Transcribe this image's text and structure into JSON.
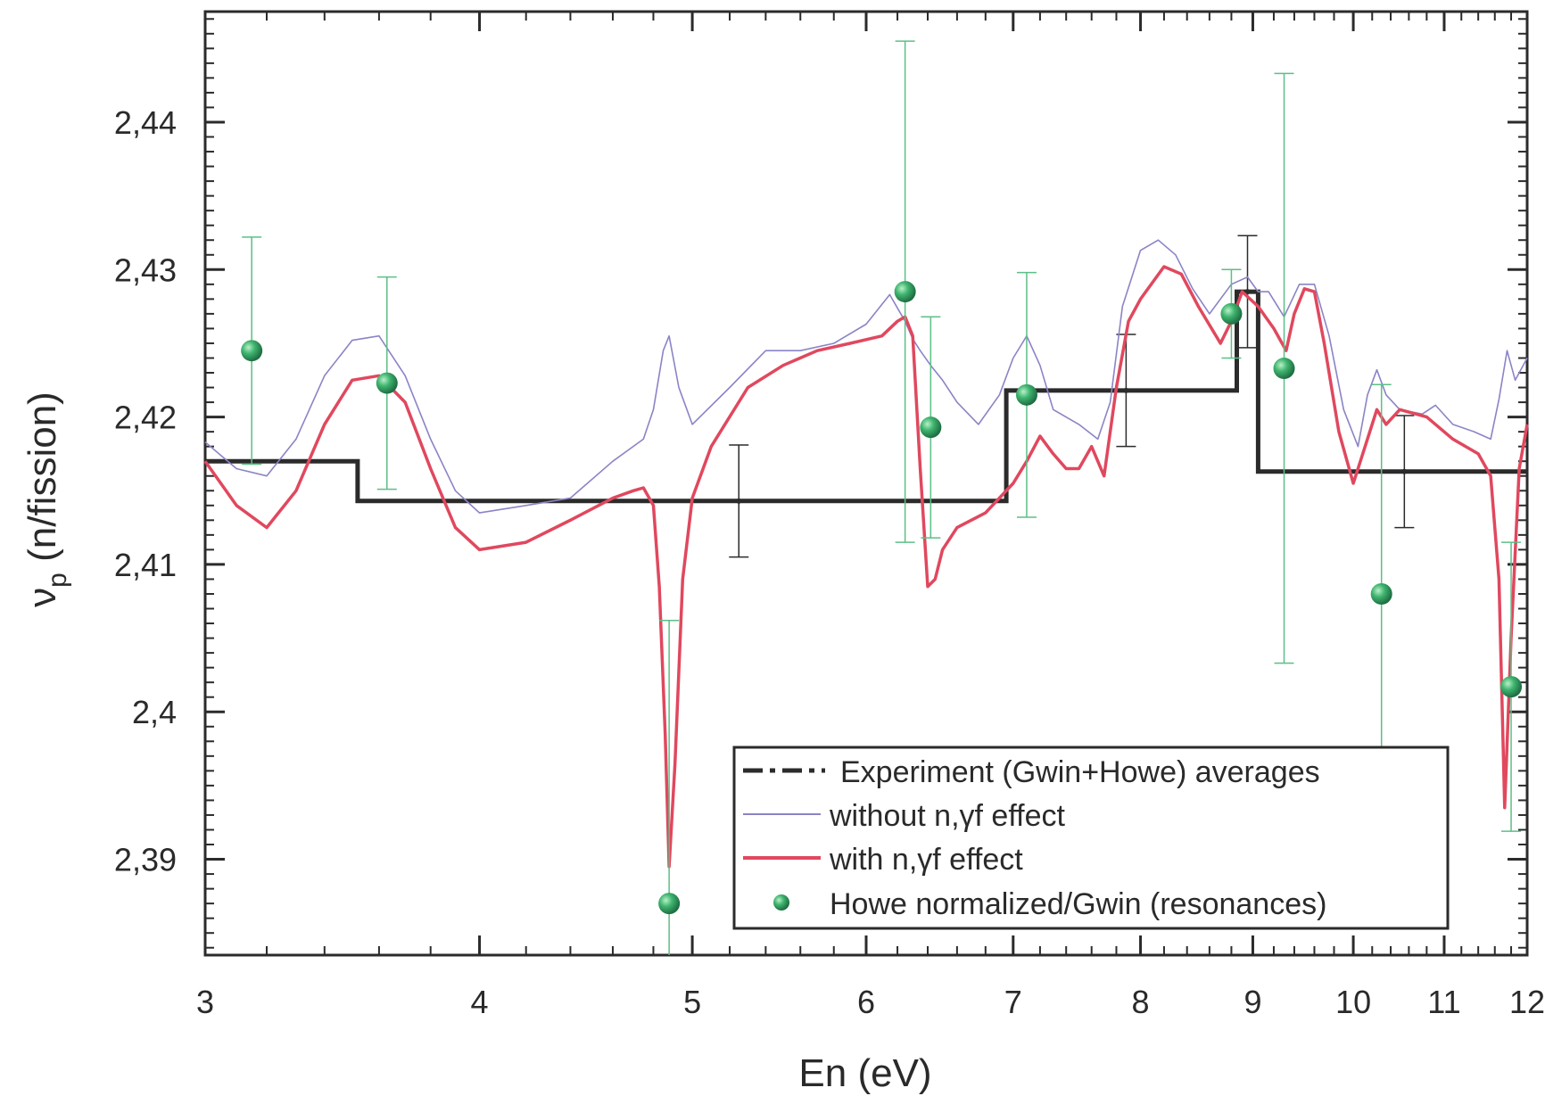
{
  "chart_data": {
    "type": "line",
    "xlabel": "En (eV)",
    "ylabel": "ν",
    "ylabel_sub": "p",
    "ylabel_unit": "(n/fission)",
    "x_scale": "log",
    "xlim": [
      3,
      12
    ],
    "ylim": [
      2.3835,
      2.4475
    ],
    "x_ticks": [
      {
        "value": 3,
        "label": "3"
      },
      {
        "value": 4,
        "label": "4"
      },
      {
        "value": 5,
        "label": "5"
      },
      {
        "value": 6,
        "label": "6"
      },
      {
        "value": 7,
        "label": "7"
      },
      {
        "value": 8,
        "label": "8"
      },
      {
        "value": 9,
        "label": "9"
      },
      {
        "value": 10,
        "label": "10"
      },
      {
        "value": 11,
        "label": "11"
      },
      {
        "value": 12,
        "label": "12"
      }
    ],
    "y_ticks": [
      {
        "value": 2.39,
        "label": "2,39"
      },
      {
        "value": 2.4,
        "label": "2,4"
      },
      {
        "value": 2.41,
        "label": "2,41"
      },
      {
        "value": 2.42,
        "label": "2,42"
      },
      {
        "value": 2.43,
        "label": "2,43"
      },
      {
        "value": 2.44,
        "label": "2,44"
      }
    ],
    "grid": false,
    "legend_position": "bottom-right",
    "series": [
      {
        "name": "Experiment (Gwin+Howe) averages",
        "kind": "step",
        "color": "#2b2b2b",
        "steps": [
          {
            "x0": 3.0,
            "x1": 3.52,
            "y": 2.417
          },
          {
            "x0": 3.52,
            "x1": 6.95,
            "y": 2.4143
          },
          {
            "x0": 6.95,
            "x1": 8.85,
            "y": 2.4218
          },
          {
            "x0": 8.85,
            "x1": 9.05,
            "y": 2.4285
          },
          {
            "x0": 9.05,
            "x1": 12.0,
            "y": 2.4163
          }
        ],
        "error_bars": [
          {
            "x": 5.25,
            "y": 2.4143,
            "err": 0.0038
          },
          {
            "x": 7.88,
            "y": 2.4218,
            "err": 0.0038
          },
          {
            "x": 8.95,
            "y": 2.4285,
            "err": 0.0038
          },
          {
            "x": 10.55,
            "y": 2.4163,
            "err": 0.0038
          }
        ]
      },
      {
        "name": "without  n,γf effect",
        "kind": "line",
        "color": "#8a84c6",
        "x": [
          3.0,
          3.1,
          3.2,
          3.3,
          3.4,
          3.5,
          3.6,
          3.7,
          3.8,
          3.9,
          4.0,
          4.2,
          4.4,
          4.6,
          4.75,
          4.8,
          4.85,
          4.88,
          4.93,
          5.0,
          5.2,
          5.4,
          5.6,
          5.8,
          6.0,
          6.15,
          6.25,
          6.3,
          6.35,
          6.42,
          6.5,
          6.6,
          6.75,
          6.9,
          7.0,
          7.1,
          7.2,
          7.3,
          7.5,
          7.65,
          7.75,
          7.85,
          8.0,
          8.15,
          8.3,
          8.45,
          8.6,
          8.8,
          8.95,
          9.05,
          9.15,
          9.3,
          9.45,
          9.6,
          9.75,
          9.9,
          10.05,
          10.15,
          10.25,
          10.35,
          10.5,
          10.75,
          10.9,
          11.1,
          11.35,
          11.55,
          11.65,
          11.75,
          11.85,
          12.0
        ],
        "y": [
          2.4183,
          2.4165,
          2.416,
          2.4185,
          2.4228,
          2.4252,
          2.4255,
          2.4228,
          2.4185,
          2.415,
          2.4135,
          2.414,
          2.4145,
          2.417,
          2.4185,
          2.4205,
          2.4245,
          2.4255,
          2.422,
          2.4195,
          2.422,
          2.4245,
          2.4245,
          2.425,
          2.4263,
          2.4283,
          2.4265,
          2.4253,
          2.4245,
          2.4235,
          2.4225,
          2.421,
          2.4195,
          2.4215,
          2.424,
          2.4255,
          2.4235,
          2.4205,
          2.4195,
          2.4185,
          2.421,
          2.4275,
          2.4313,
          2.432,
          2.431,
          2.4287,
          2.427,
          2.429,
          2.4295,
          2.4285,
          2.4285,
          2.4268,
          2.429,
          2.429,
          2.4255,
          2.4205,
          2.418,
          2.4215,
          2.4232,
          2.4215,
          2.4205,
          2.4202,
          2.4208,
          2.4195,
          2.419,
          2.4185,
          2.4212,
          2.4245,
          2.4225,
          2.424
        ]
      },
      {
        "name": "with n,γf effect",
        "kind": "line",
        "color": "#e0485e",
        "x": [
          3.0,
          3.1,
          3.2,
          3.3,
          3.4,
          3.5,
          3.6,
          3.7,
          3.8,
          3.9,
          4.0,
          4.2,
          4.4,
          4.6,
          4.7,
          4.75,
          4.8,
          4.83,
          4.86,
          4.88,
          4.91,
          4.95,
          5.0,
          5.1,
          5.3,
          5.5,
          5.7,
          5.9,
          6.1,
          6.2,
          6.25,
          6.3,
          6.35,
          6.4,
          6.45,
          6.5,
          6.6,
          6.8,
          7.0,
          7.1,
          7.2,
          7.3,
          7.4,
          7.5,
          7.6,
          7.7,
          7.8,
          7.9,
          8.0,
          8.2,
          8.35,
          8.5,
          8.7,
          8.8,
          8.9,
          9.05,
          9.2,
          9.32,
          9.4,
          9.5,
          9.6,
          9.7,
          9.85,
          10.0,
          10.1,
          10.25,
          10.35,
          10.5,
          10.8,
          11.1,
          11.4,
          11.55,
          11.65,
          11.72,
          11.8,
          11.9,
          12.0
        ],
        "y": [
          2.417,
          2.414,
          2.4125,
          2.415,
          2.4195,
          2.4225,
          2.4228,
          2.421,
          2.4165,
          2.4125,
          2.411,
          2.4115,
          2.413,
          2.4145,
          2.415,
          2.4152,
          2.414,
          2.4085,
          2.3985,
          2.3895,
          2.3965,
          2.409,
          2.4145,
          2.418,
          2.422,
          2.4235,
          2.4245,
          2.425,
          2.4255,
          2.4265,
          2.4268,
          2.4255,
          2.4165,
          2.4085,
          2.409,
          2.411,
          2.4125,
          2.4135,
          2.4155,
          2.417,
          2.4187,
          2.4175,
          2.4165,
          2.4165,
          2.418,
          2.416,
          2.422,
          2.4265,
          2.428,
          2.4302,
          2.4297,
          2.4275,
          2.425,
          2.4265,
          2.4285,
          2.4275,
          2.426,
          2.4245,
          2.427,
          2.4287,
          2.4285,
          2.425,
          2.419,
          2.4155,
          2.4175,
          2.4205,
          2.4195,
          2.4205,
          2.42,
          2.4185,
          2.4175,
          2.416,
          2.409,
          2.3935,
          2.405,
          2.4165,
          2.4195
        ]
      },
      {
        "name": "Howe normalized/Gwin (resonances)",
        "kind": "scatter",
        "color": "#3aa86b",
        "points": [
          {
            "x": 3.15,
            "y": 2.4245,
            "err": 0.0077
          },
          {
            "x": 3.63,
            "y": 2.4223,
            "err": 0.0072
          },
          {
            "x": 4.88,
            "y": 2.387,
            "err": 0.0192
          },
          {
            "x": 6.25,
            "y": 2.4285,
            "err": 0.017
          },
          {
            "x": 6.42,
            "y": 2.4193,
            "err": 0.0075
          },
          {
            "x": 7.1,
            "y": 2.4215,
            "err": 0.0083
          },
          {
            "x": 8.8,
            "y": 2.427,
            "err": 0.003
          },
          {
            "x": 9.3,
            "y": 2.4233,
            "err": 0.02
          },
          {
            "x": 10.3,
            "y": 2.408,
            "err": 0.0142
          },
          {
            "x": 11.8,
            "y": 2.4017,
            "err": 0.0098
          }
        ]
      }
    ],
    "legend": [
      {
        "label": "Experiment (Gwin+Howe) averages",
        "style": "dashdot",
        "color": "#2b2b2b"
      },
      {
        "label": "without  n,γf effect",
        "style": "thin",
        "color": "#8a84c6"
      },
      {
        "label": "with n,γf effect",
        "style": "thick",
        "color": "#e0485e"
      },
      {
        "label": "Howe normalized/Gwin (resonances)",
        "style": "marker",
        "color": "#3aa86b"
      }
    ]
  }
}
